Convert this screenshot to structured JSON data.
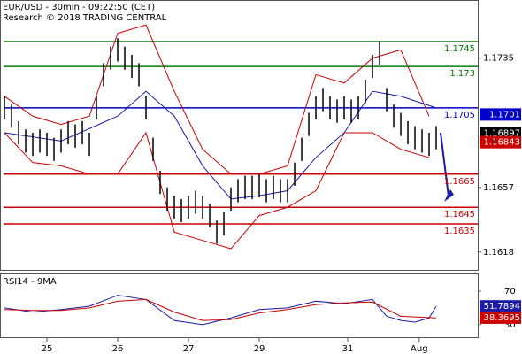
{
  "chart_data": [
    {
      "type": "hlc_bars",
      "title": "EUR/USD - 30min - 09:22:50 (CET)",
      "subtitle": "Research © 2018 TRADING CENTRAL",
      "color": "#000000",
      "x": [
        0,
        1,
        2,
        3,
        4,
        5,
        6,
        7,
        8,
        9,
        10,
        11,
        12,
        13,
        14,
        15,
        16,
        17,
        18,
        19,
        20,
        21,
        22,
        23,
        24,
        25,
        26,
        27,
        28,
        29,
        30,
        31,
        32,
        33,
        34,
        35,
        36,
        37,
        38,
        39,
        40,
        41,
        42,
        43,
        44,
        45,
        46,
        47,
        48,
        49,
        50,
        51,
        52,
        53,
        54,
        55,
        56,
        57,
        58,
        59,
        60,
        61
      ],
      "high": [
        1.1712,
        1.1707,
        1.1697,
        1.1692,
        1.169,
        1.1692,
        1.169,
        1.1687,
        1.1692,
        1.1697,
        1.1695,
        1.1697,
        1.169,
        1.1712,
        1.1732,
        1.1742,
        1.1747,
        1.1742,
        1.1737,
        1.1732,
        1.1712,
        1.1687,
        1.1667,
        1.1657,
        1.1652,
        1.165,
        1.1652,
        1.1655,
        1.1652,
        1.1647,
        1.1637,
        1.1642,
        1.1657,
        1.1662,
        1.1664,
        1.1664,
        1.1665,
        1.1662,
        1.1664,
        1.1662,
        1.1662,
        1.1672,
        1.1687,
        1.1702,
        1.1712,
        1.1717,
        1.1712,
        1.171,
        1.1712,
        1.171,
        1.1712,
        1.1722,
        1.1737,
        1.1745,
        1.1717,
        1.1707,
        1.1702,
        1.1697,
        1.1694,
        1.1692,
        1.169,
        1.1694
      ],
      "low": [
        1.1698,
        1.1693,
        1.1683,
        1.1678,
        1.1676,
        1.1678,
        1.1676,
        1.1673,
        1.1678,
        1.1683,
        1.1681,
        1.1683,
        1.1676,
        1.1698,
        1.1718,
        1.1728,
        1.1733,
        1.1728,
        1.1723,
        1.1718,
        1.1698,
        1.1673,
        1.1653,
        1.1643,
        1.1638,
        1.1636,
        1.1638,
        1.1641,
        1.1638,
        1.1633,
        1.1623,
        1.1628,
        1.1643,
        1.1648,
        1.165,
        1.165,
        1.1651,
        1.1648,
        1.165,
        1.1648,
        1.1648,
        1.1658,
        1.1673,
        1.1688,
        1.1698,
        1.1703,
        1.1698,
        1.1696,
        1.1698,
        1.1696,
        1.1698,
        1.1708,
        1.1723,
        1.1731,
        1.1703,
        1.1693,
        1.1688,
        1.1683,
        1.168,
        1.1678,
        1.1676,
        1.168
      ],
      "overlays": [
        {
          "color": "#cc0000",
          "x": [
            0,
            4,
            8,
            12,
            16,
            20,
            24,
            28,
            32,
            36,
            40,
            44,
            48,
            52,
            56,
            60
          ],
          "values": [
            1.1712,
            1.17,
            1.1695,
            1.17,
            1.175,
            1.1755,
            1.1715,
            1.168,
            1.1665,
            1.1665,
            1.167,
            1.1725,
            1.172,
            1.1735,
            1.174,
            1.17
          ]
        },
        {
          "color": "#cc0000",
          "x": [
            0,
            4,
            8,
            12,
            16,
            20,
            24,
            28,
            32,
            36,
            40,
            44,
            48,
            52,
            56,
            60
          ],
          "values": [
            1.169,
            1.1672,
            1.167,
            1.1665,
            1.1665,
            1.169,
            1.163,
            1.1625,
            1.162,
            1.164,
            1.1645,
            1.1655,
            1.169,
            1.169,
            1.168,
            1.1675
          ]
        },
        {
          "color": "#1a1aa6",
          "x": [
            0,
            8,
            16,
            20,
            24,
            28,
            32,
            36,
            40,
            44,
            48,
            52,
            56,
            61
          ],
          "values": [
            1.169,
            1.1685,
            1.17,
            1.1715,
            1.17,
            1.167,
            1.165,
            1.1652,
            1.1655,
            1.1675,
            1.169,
            1.1715,
            1.1712,
            1.1705
          ]
        }
      ],
      "levels": [
        {
          "value": 1.1745,
          "color": "#008000"
        },
        {
          "value": 1.173,
          "color": "#008000"
        },
        {
          "value": 1.1705,
          "color": "#0000cc"
        },
        {
          "value": 1.1665,
          "color": "#cc0000"
        },
        {
          "value": 1.1645,
          "color": "#cc0000"
        },
        {
          "value": 1.1635,
          "color": "#cc0000"
        }
      ],
      "price_tags": [
        {
          "value": 1.1701,
          "color": "#0000cc"
        },
        {
          "value": 1.16897,
          "color": "#000000"
        },
        {
          "value": 1.16843,
          "color": "#cc0000"
        }
      ],
      "xlim": [
        -0.625,
        66.875
      ],
      "xticks": [
        {
          "value": 6,
          "label": "25"
        },
        {
          "value": 16,
          "label": "26"
        },
        {
          "value": 26,
          "label": "27"
        },
        {
          "value": 36,
          "label": "29"
        },
        {
          "value": 48.5,
          "label": "31"
        },
        {
          "value": 58.6,
          "label": "Aug"
        }
      ],
      "ylim": [
        1.16072,
        1.17701
      ],
      "yticks": [
        1.1735,
        1.1657,
        1.1618
      ]
    },
    {
      "type": "lines",
      "title": "RSI14 - 9MA",
      "series": [
        {
          "color": "#1a1aa6",
          "x": [
            0,
            4,
            8,
            12,
            16,
            20,
            24,
            28,
            32,
            36,
            40,
            44,
            48,
            52,
            54,
            56,
            58,
            60,
            61
          ],
          "values": [
            50,
            45,
            48,
            52,
            65,
            60,
            35,
            30,
            38,
            48,
            50,
            58,
            55,
            60,
            40,
            35,
            33,
            38,
            52
          ]
        },
        {
          "color": "#cc0000",
          "x": [
            0,
            4,
            8,
            12,
            16,
            20,
            24,
            28,
            32,
            36,
            40,
            44,
            48,
            52,
            56,
            61
          ],
          "values": [
            48,
            47,
            47,
            50,
            58,
            60,
            45,
            35,
            36,
            44,
            48,
            54,
            56,
            57,
            40,
            38
          ]
        }
      ],
      "tags": [
        {
          "value": 51.7894,
          "color": "#1a1aa6"
        },
        {
          "value": 38.3695,
          "color": "#cc0000"
        }
      ],
      "xlim": [
        -0.625,
        66.875
      ],
      "ylim": [
        14,
        90
      ],
      "yticks": [
        30,
        70
      ]
    }
  ]
}
